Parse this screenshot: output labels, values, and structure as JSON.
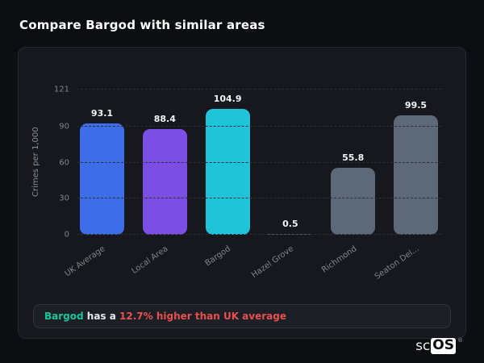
{
  "header": {
    "title": "Compare Bargod with similar areas"
  },
  "chart_data": {
    "type": "bar",
    "title": "",
    "xlabel": "",
    "ylabel": "Crimes per 1,000",
    "ylim": [
      0,
      121
    ],
    "yticks": [
      0,
      30,
      60,
      90,
      121
    ],
    "categories": [
      "UK Average",
      "Local Area",
      "Bargod",
      "Hazel Grove",
      "Richmond",
      "Seaton Del..."
    ],
    "values": [
      93.1,
      88.4,
      104.9,
      0.5,
      55.8,
      99.5
    ],
    "bar_colors": [
      "#3e6de9",
      "#7b4fe3",
      "#20c4d9",
      "#5d6879",
      "#5d6879",
      "#5d6879"
    ],
    "grid": "horizontal-dashed",
    "legend": "none"
  },
  "note": {
    "area_label": "Bargod",
    "connector_text": " has a ",
    "highlight_text": "12.7% higher than UK average",
    "area_color": "#17c79b",
    "highlight_color": "#e8504e"
  },
  "logo": {
    "prefix": "sc",
    "badge": "OS",
    "registered": "®"
  }
}
